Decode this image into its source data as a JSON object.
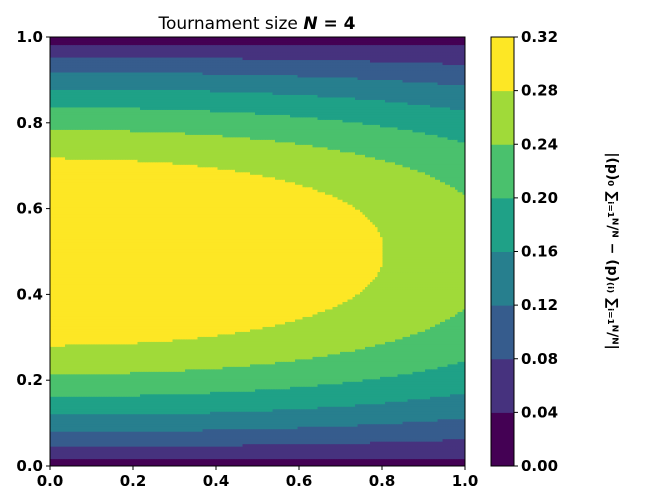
{
  "chart_data": {
    "type": "contourf",
    "title": {
      "prefix": "Tournament size ",
      "symbol": "N",
      "suffix": " = 4"
    },
    "x": {
      "range": [
        0.0,
        1.0
      ],
      "ticks": [
        "0.0",
        "0.2",
        "0.4",
        "0.6",
        "0.8",
        "1.0"
      ]
    },
    "y": {
      "range": [
        0.0,
        1.0
      ],
      "ticks": [
        "0.0",
        "0.2",
        "0.4",
        "0.6",
        "0.8",
        "1.0"
      ]
    },
    "colorbar": {
      "position": "right",
      "label": "|(p)₀ ∑ᵢ₌₁ᴺ/ᴺ − (p)₍ᵢ₎ ∑ᵢ₌₁ᴺ/ᴺ|",
      "levels": [
        0.0,
        0.04,
        0.08,
        0.12,
        0.16,
        0.2,
        0.24,
        0.28,
        0.32
      ],
      "tick_labels": [
        "0.00",
        "0.04",
        "0.08",
        "0.12",
        "0.16",
        "0.20",
        "0.24",
        "0.28",
        "0.32"
      ],
      "colors": [
        "#440154",
        "#46327e",
        "#365c8d",
        "#277f8e",
        "#1fa187",
        "#4ac16d",
        "#a0da39",
        "#fde725"
      ]
    }
  }
}
